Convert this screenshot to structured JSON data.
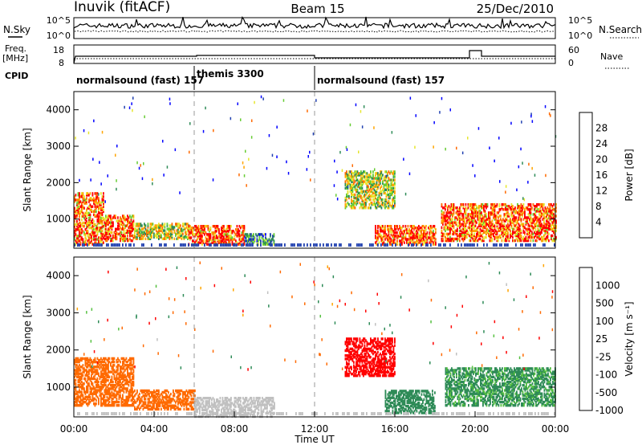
{
  "header": {
    "station": "Inuvik (fitACF)",
    "beam": "Beam 15",
    "date": "25/Dec/2010"
  },
  "noise_panel": {
    "left_label": "N.Sky",
    "right_label": "N.Search",
    "ticks": [
      "10^5",
      "10^0"
    ]
  },
  "freq_panel": {
    "left_label_line1": "Freq.",
    "left_label_line2": "[MHz]",
    "right_label": "Nave",
    "left_ticks": [
      "18",
      "8"
    ],
    "right_ticks": [
      "60",
      "0"
    ]
  },
  "cpid": {
    "label": "CPID",
    "segments": [
      {
        "name": "normalsound (fast) 157",
        "start": 0,
        "end": 6
      },
      {
        "name": "themis 3300",
        "start": 6,
        "end": 12
      },
      {
        "name": "normalsound (fast) 157",
        "start": 12,
        "end": 24
      }
    ]
  },
  "chart_data": [
    {
      "type": "heatmap",
      "title": "",
      "xlabel": "Time UT",
      "ylabel": "Slant Range [km]",
      "xlim": [
        0,
        24
      ],
      "ylim": [
        200,
        4500
      ],
      "x_ticks": [
        "00:00",
        "04:00",
        "08:00",
        "12:00",
        "16:00",
        "20:00",
        "00:00"
      ],
      "y_ticks": [
        "1000",
        "2000",
        "3000",
        "4000"
      ],
      "colorbar": {
        "label": "Power [dB]",
        "ticks": [
          "28",
          "24",
          "20",
          "16",
          "12",
          "8",
          "4"
        ],
        "colors": [
          "#0000ff",
          "#2040b0",
          "#2e8b57",
          "#66cc33",
          "#e6e62e",
          "#ffa500",
          "#ff6a00",
          "#ff0000"
        ]
      },
      "echo_regions": [
        {
          "x": [
            0,
            1.5
          ],
          "y": [
            300,
            1700
          ],
          "value": 26
        },
        {
          "x": [
            1.5,
            3
          ],
          "y": [
            400,
            1100
          ],
          "value": 27
        },
        {
          "x": [
            3,
            5.7
          ],
          "y": [
            450,
            900
          ],
          "value": 18
        },
        {
          "x": [
            5.7,
            8.5
          ],
          "y": [
            300,
            800
          ],
          "value": 27
        },
        {
          "x": [
            8.5,
            10
          ],
          "y": [
            300,
            600
          ],
          "value": 10
        },
        {
          "x": [
            13.5,
            16
          ],
          "y": [
            1300,
            2300
          ],
          "value": 17
        },
        {
          "x": [
            15,
            18
          ],
          "y": [
            300,
            800
          ],
          "value": 28
        },
        {
          "x": [
            18.3,
            24
          ],
          "y": [
            400,
            1400
          ],
          "value": 27
        }
      ]
    },
    {
      "type": "heatmap",
      "title": "",
      "xlabel": "Time UT",
      "ylabel": "Slant Range [km]",
      "xlim": [
        0,
        24
      ],
      "ylim": [
        200,
        4500
      ],
      "x_ticks": [
        "00:00",
        "04:00",
        "08:00",
        "12:00",
        "16:00",
        "20:00",
        "00:00"
      ],
      "y_ticks": [
        "1000",
        "2000",
        "3000",
        "4000"
      ],
      "colorbar": {
        "label": "Velocity [m s⁻¹]",
        "ticks": [
          "1000",
          "500",
          "100",
          "25",
          "-25",
          "-100",
          "-500",
          "-1000"
        ],
        "colors": [
          "#0000cc",
          "#2a55b0",
          "#2e8b57",
          "#55c040",
          "#c0c0c0",
          "#ffa500",
          "#ff6a00",
          "#ff0000"
        ]
      },
      "echo_regions": [
        {
          "x": [
            0,
            3
          ],
          "y": [
            500,
            1800
          ],
          "value": 200
        },
        {
          "x": [
            3,
            6
          ],
          "y": [
            400,
            900
          ],
          "value": 150
        },
        {
          "x": [
            6,
            10
          ],
          "y": [
            200,
            700
          ],
          "value": 0
        },
        {
          "x": [
            13.5,
            16
          ],
          "y": [
            1300,
            2300
          ],
          "value": 800
        },
        {
          "x": [
            15.5,
            18
          ],
          "y": [
            300,
            900
          ],
          "value": -150
        },
        {
          "x": [
            18.5,
            24
          ],
          "y": [
            500,
            1500
          ],
          "value": -120
        }
      ]
    }
  ]
}
